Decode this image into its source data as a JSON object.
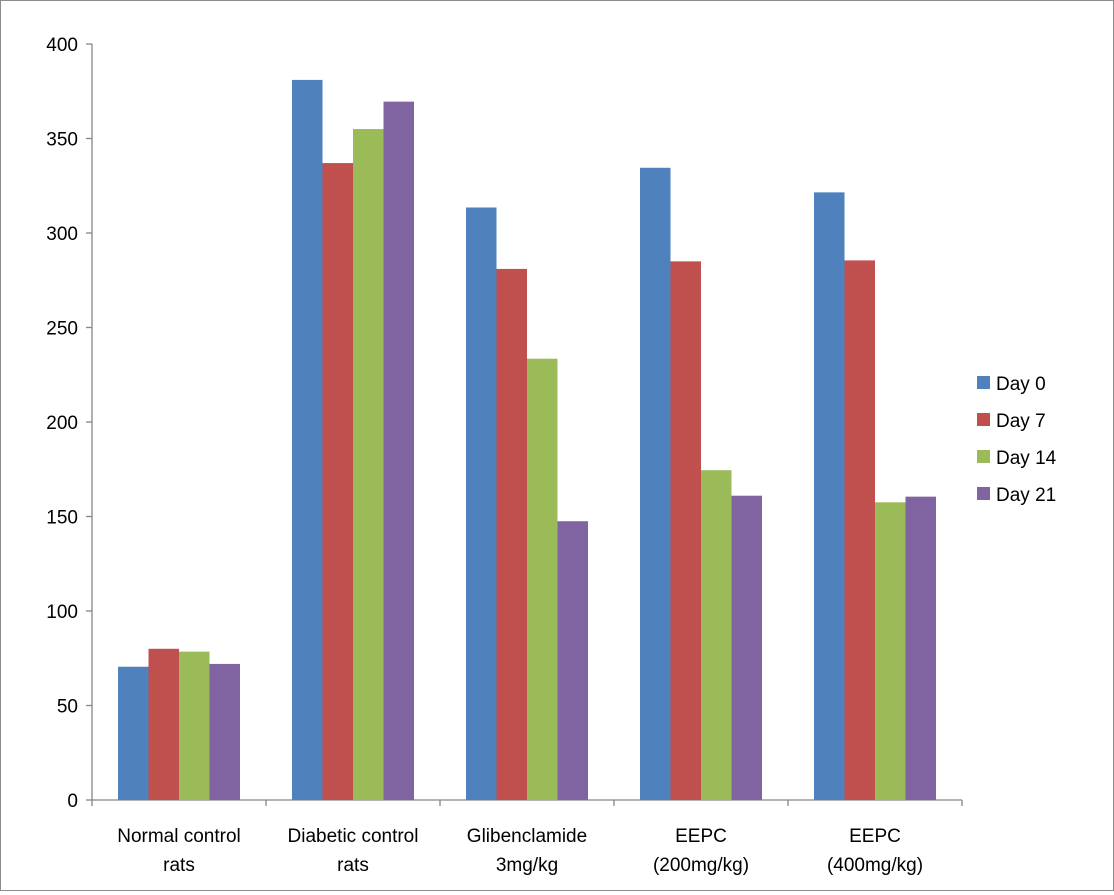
{
  "chart_data": {
    "type": "bar",
    "title": "",
    "xlabel": "",
    "ylabel": "",
    "ylim": [
      0,
      400
    ],
    "yticks": [
      0,
      50,
      100,
      150,
      200,
      250,
      300,
      350,
      400
    ],
    "grid": false,
    "legend_position": "right",
    "categories": [
      [
        "Normal control",
        "rats"
      ],
      [
        "Diabetic control",
        "rats"
      ],
      [
        "Glibenclamide",
        "3mg/kg"
      ],
      [
        "EEPC",
        "(200mg/kg)"
      ],
      [
        "EEPC",
        "(400mg/kg)"
      ]
    ],
    "series": [
      {
        "name": "Day 0",
        "color": "#4f81bd",
        "values": [
          70.5,
          381,
          313.5,
          334.5,
          321.5
        ]
      },
      {
        "name": "Day 7",
        "color": "#c0504d",
        "values": [
          80,
          337,
          281,
          285,
          285.5
        ]
      },
      {
        "name": "Day 14",
        "color": "#9bbb59",
        "values": [
          78.5,
          355,
          233.5,
          174.5,
          157.5
        ]
      },
      {
        "name": "Day 21",
        "color": "#8064a2",
        "values": [
          72,
          369.5,
          147.5,
          161,
          160.5
        ]
      }
    ]
  }
}
